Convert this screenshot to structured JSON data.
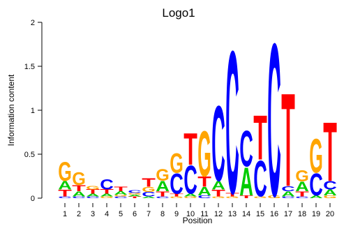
{
  "chart_data": {
    "type": "sequence-logo",
    "title": "Logo1",
    "xlabel": "Position",
    "ylabel": "Information content",
    "ylim": [
      0,
      2
    ],
    "yticks": [
      0,
      0.5,
      1,
      1.5,
      2
    ],
    "ytick_labels": [
      "0",
      "0.5",
      "1",
      "1.5",
      "2"
    ],
    "positions": [
      "1",
      "2",
      "3",
      "4",
      "5",
      "6",
      "7",
      "8",
      "9",
      "10",
      "11",
      "12",
      "13",
      "14",
      "15",
      "16",
      "17",
      "18",
      "19",
      "20"
    ],
    "colors": {
      "A": "#00cc00",
      "C": "#0000ff",
      "G": "#ffa500",
      "T": "#ff0000"
    },
    "stacks": [
      [
        [
          "C",
          0.02
        ],
        [
          "T",
          0.08
        ],
        [
          "A",
          0.1
        ],
        [
          "G",
          0.22
        ]
      ],
      [
        [
          "C",
          0.02
        ],
        [
          "A",
          0.06
        ],
        [
          "T",
          0.07
        ],
        [
          "G",
          0.15
        ]
      ],
      [
        [
          "C",
          0.02
        ],
        [
          "A",
          0.03
        ],
        [
          "T",
          0.05
        ],
        [
          "G",
          0.04
        ]
      ],
      [
        [
          "G",
          0.02
        ],
        [
          "A",
          0.03
        ],
        [
          "T",
          0.05
        ],
        [
          "C",
          0.12
        ]
      ],
      [
        [
          "C",
          0.02
        ],
        [
          "G",
          0.02
        ],
        [
          "A",
          0.04
        ],
        [
          "T",
          0.05
        ]
      ],
      [
        [
          "T",
          0.02
        ],
        [
          "A",
          0.02
        ],
        [
          "G",
          0.02
        ],
        [
          "C",
          0.03
        ]
      ],
      [
        [
          "A",
          0.02
        ],
        [
          "C",
          0.05
        ],
        [
          "G",
          0.06
        ],
        [
          "T",
          0.1
        ]
      ],
      [
        [
          "C",
          0.02
        ],
        [
          "T",
          0.06
        ],
        [
          "A",
          0.12
        ],
        [
          "G",
          0.14
        ]
      ],
      [
        [
          "G",
          0.02
        ],
        [
          "T",
          0.03
        ],
        [
          "C",
          0.24
        ],
        [
          "G",
          0.23
        ]
      ],
      [
        [
          "G",
          0.02
        ],
        [
          "A",
          0.03
        ],
        [
          "C",
          0.33
        ],
        [
          "T",
          0.37
        ]
      ],
      [
        [
          "C",
          0.03
        ],
        [
          "A",
          0.1
        ],
        [
          "T",
          0.12
        ],
        [
          "G",
          0.53
        ]
      ],
      [
        [
          "G",
          0.02
        ],
        [
          "T",
          0.08
        ],
        [
          "A",
          0.1
        ],
        [
          "C",
          0.88
        ]
      ],
      [
        [
          "G",
          0.02
        ],
        [
          "T",
          0.04
        ],
        [
          "C",
          1.67
        ]
      ],
      [
        [
          "T",
          0.03
        ],
        [
          "A",
          0.33
        ],
        [
          "C",
          0.42
        ]
      ],
      [
        [
          "G",
          0.02
        ],
        [
          "C",
          0.42
        ],
        [
          "T",
          0.52
        ]
      ],
      [
        [
          "G",
          0.03
        ],
        [
          "C",
          1.79
        ]
      ],
      [
        [
          "C",
          0.02
        ],
        [
          "A",
          0.06
        ],
        [
          "C",
          0.06
        ],
        [
          "T",
          1.09
        ]
      ],
      [
        [
          "C",
          0.02
        ],
        [
          "T",
          0.06
        ],
        [
          "A",
          0.11
        ],
        [
          "G",
          0.13
        ]
      ],
      [
        [
          "A",
          0.03
        ],
        [
          "C",
          0.26
        ],
        [
          "G",
          0.4
        ]
      ],
      [
        [
          "G",
          0.03
        ],
        [
          "A",
          0.07
        ],
        [
          "C",
          0.1
        ],
        [
          "T",
          0.69
        ]
      ]
    ]
  }
}
